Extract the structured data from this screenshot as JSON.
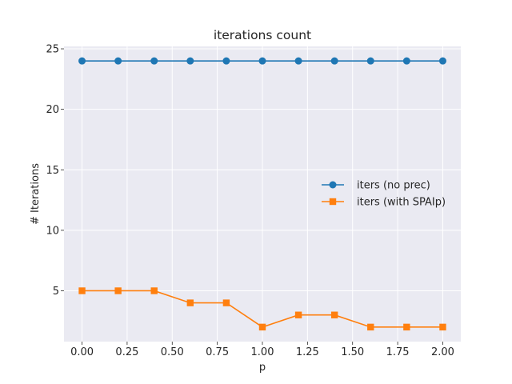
{
  "chart_data": {
    "type": "line",
    "title": "iterations count",
    "xlabel": "p",
    "ylabel": "# Iterations",
    "x": [
      0.0,
      0.2,
      0.4,
      0.6,
      0.8,
      1.0,
      1.2,
      1.4,
      1.6,
      1.8,
      2.0
    ],
    "xlim": [
      -0.1,
      2.1
    ],
    "ylim": [
      0.8,
      25.2
    ],
    "xticks": [
      0.0,
      0.25,
      0.5,
      0.75,
      1.0,
      1.25,
      1.5,
      1.75,
      2.0
    ],
    "xtick_labels": [
      "0.00",
      "0.25",
      "0.50",
      "0.75",
      "1.00",
      "1.25",
      "1.50",
      "1.75",
      "2.00"
    ],
    "yticks": [
      5,
      10,
      15,
      20,
      25
    ],
    "ytick_labels": [
      "5",
      "10",
      "15",
      "20",
      "25"
    ],
    "grid": true,
    "legend_position": "center-right",
    "background": "#eaeaf2",
    "series": [
      {
        "name": "iters (no prec)",
        "color": "#1f77b4",
        "marker": "circle",
        "values": [
          24,
          24,
          24,
          24,
          24,
          24,
          24,
          24,
          24,
          24,
          24
        ]
      },
      {
        "name": "iters (with SPAIp)",
        "color": "#ff7f0e",
        "marker": "square",
        "values": [
          5,
          5,
          5,
          4,
          4,
          2,
          3,
          3,
          2,
          2,
          2
        ]
      }
    ]
  }
}
